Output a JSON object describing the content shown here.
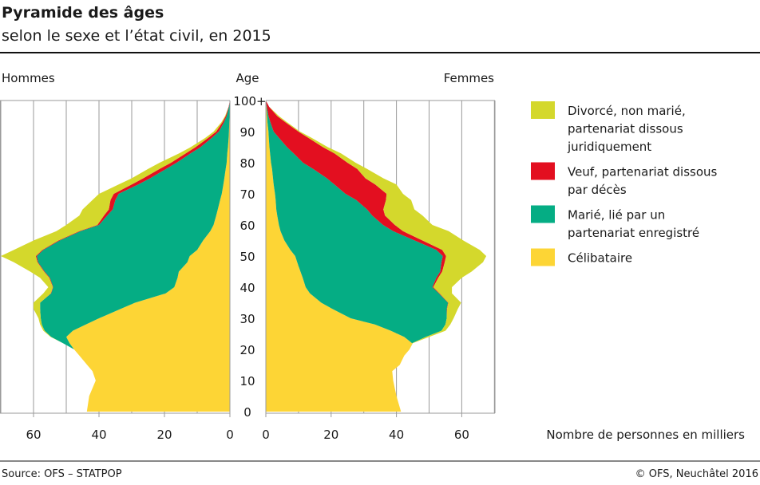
{
  "title": "Pyramide des âges",
  "subtitle": "selon le sexe et l’état civil, en 2015",
  "source": "Source: OFS – STATPOP",
  "copyright": "© OFS, Neuchâtel 2016",
  "chart_data": {
    "type": "area",
    "subtype": "population-pyramid",
    "left_label": "Hommes",
    "right_label": "Femmes",
    "ylabel": "Age",
    "xlabel": "Nombre de personnes en milliers",
    "ylim": [
      0,
      100
    ],
    "xlim": [
      0,
      70
    ],
    "y_ticks": [
      "0",
      "10",
      "20",
      "30",
      "40",
      "50",
      "60",
      "70",
      "80",
      "90",
      "100+"
    ],
    "x_ticks": [
      "0",
      "20",
      "40",
      "60"
    ],
    "grid": true,
    "legend_position": "right",
    "legend": [
      {
        "key": "divorced",
        "label_lines": [
          "Divorcé, non marié,",
          "partenariat dissous",
          "juridiquement"
        ],
        "color": "#d4d82c"
      },
      {
        "key": "widowed",
        "label_lines": [
          "Veuf, partenariat dissous",
          "par décès"
        ],
        "color": "#e30f20"
      },
      {
        "key": "married",
        "label_lines": [
          "Marié, lié par un",
          "partenariat enregistré"
        ],
        "color": "#05ad84"
      },
      {
        "key": "single",
        "label_lines": [
          "Célibataire"
        ],
        "color": "#fdd535"
      }
    ],
    "ages": [
      0,
      5,
      10,
      13,
      15,
      18,
      20,
      22,
      24,
      26,
      28,
      30,
      33,
      35,
      38,
      40,
      43,
      45,
      48,
      50,
      52,
      55,
      58,
      60,
      63,
      65,
      68,
      70,
      73,
      75,
      78,
      80,
      83,
      85,
      88,
      90,
      93,
      95,
      98,
      100
    ],
    "men": {
      "single": [
        43.7,
        43,
        41,
        42,
        43.6,
        46,
        47.6,
        49,
        50,
        48,
        44,
        40,
        33.4,
        29,
        19.6,
        17,
        16,
        15.6,
        13,
        12.3,
        10,
        8.2,
        6,
        5,
        4.2,
        3.7,
        3,
        2.5,
        2,
        1.7,
        1.3,
        1,
        0.8,
        0.6,
        0.4,
        0.3,
        0.2,
        0.1,
        0,
        0
      ],
      "married": [
        0,
        0,
        0,
        0,
        0,
        0,
        0,
        2,
        4.6,
        8.6,
        13.5,
        17.8,
        24.6,
        29,
        35,
        37,
        39,
        41,
        45.6,
        46.7,
        47,
        43.8,
        39.6,
        35,
        33.3,
        32.1,
        32,
        31.5,
        26,
        22.7,
        18.2,
        15.3,
        11.2,
        8.4,
        5.1,
        3.1,
        1.6,
        0.9,
        0.3,
        0
      ],
      "widowed": [
        0,
        0,
        0,
        0,
        0,
        0,
        0,
        0,
        0,
        0,
        0,
        0,
        0,
        0,
        0.1,
        0.1,
        0.2,
        0.2,
        0.2,
        0.3,
        0.3,
        0.4,
        0.4,
        0.5,
        1,
        1.2,
        1.5,
        1.5,
        2,
        2.1,
        2,
        1.7,
        1.5,
        1.5,
        1.1,
        0.8,
        0.5,
        0.3,
        0.1,
        0
      ],
      "divorced": [
        0,
        0,
        0,
        0,
        0,
        0,
        0,
        0,
        0.2,
        0.4,
        0.5,
        0.7,
        2,
        2,
        2.3,
        1.4,
        2.8,
        4.2,
        7.2,
        10.7,
        8.7,
        7.6,
        7,
        9.5,
        7.5,
        8,
        5.5,
        4.5,
        4,
        3.5,
        3.5,
        3.5,
        2,
        1.5,
        0.9,
        0.8,
        0.3,
        0.2,
        0,
        0
      ]
    },
    "women": {
      "single": [
        41.4,
        40,
        39,
        38.7,
        41,
        42.4,
        44,
        44.8,
        42.4,
        38.3,
        33.4,
        26,
        20.4,
        17,
        13.5,
        12.2,
        11.3,
        10.6,
        9.6,
        9,
        7.5,
        5.7,
        4.5,
        4,
        3.5,
        3.2,
        3,
        2.8,
        2.4,
        2.2,
        1.9,
        1.6,
        1.3,
        1.1,
        0.9,
        0.8,
        0.5,
        0.4,
        0.2,
        0
      ],
      "married": [
        0,
        0,
        0,
        0,
        0,
        0,
        0,
        0,
        6.6,
        15.5,
        21.6,
        29.4,
        35,
        38.8,
        39.5,
        38.8,
        40.9,
        42.8,
        44.2,
        45.2,
        44.7,
        39.9,
        34.5,
        31.9,
        29.1,
        27.8,
        24.7,
        21.6,
        18.6,
        16.5,
        12.6,
        9.8,
        7.2,
        5.4,
        3.1,
        1.6,
        0.9,
        0.4,
        0.1,
        0
      ],
      "widowed": [
        0,
        0,
        0,
        0,
        0,
        0,
        0,
        0,
        0,
        0,
        0,
        0,
        0.1,
        0.1,
        0.2,
        0.3,
        0.6,
        0.6,
        1,
        1,
        1.8,
        2.4,
        3,
        3.6,
        3.9,
        5,
        9.1,
        12.6,
        12.5,
        11.8,
        13.5,
        13.6,
        12.5,
        11,
        9,
        7.6,
        4.6,
        2.7,
        0.7,
        0
      ],
      "divorced": [
        0,
        0,
        0,
        0,
        0,
        0,
        0,
        0.2,
        1,
        1.2,
        1.5,
        2.1,
        3.3,
        3.9,
        3.8,
        5.7,
        7.2,
        9,
        11.7,
        12.3,
        11.5,
        12.5,
        14,
        11.5,
        11.5,
        9.5,
        7.7,
        5,
        6.5,
        5.5,
        3,
        2.5,
        2,
        1.5,
        1,
        0.5,
        0.5,
        0.5,
        0,
        0
      ]
    }
  }
}
